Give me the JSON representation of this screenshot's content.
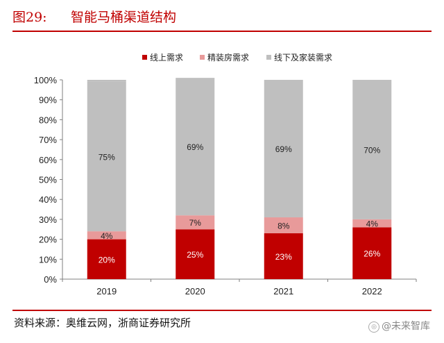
{
  "header": {
    "figure_label": "图29:",
    "title": "智能马桶渠道结构"
  },
  "source": "资料来源：奥维云网，浙商证券研究所",
  "watermark": "@未来智库",
  "colors": {
    "online": "#c00000",
    "fine_decoration": "#e89a9a",
    "offline_home": "#bfbfbf",
    "accent": "#c00000"
  },
  "chart_data": {
    "type": "bar",
    "stacked": true,
    "categories": [
      "2019",
      "2020",
      "2021",
      "2022"
    ],
    "series": [
      {
        "name": "线上需求",
        "values": [
          20,
          25,
          23,
          26
        ],
        "labels": [
          "20%",
          "25%",
          "23%",
          "26%"
        ]
      },
      {
        "name": "精装房需求",
        "values": [
          4,
          7,
          8,
          4
        ],
        "labels": [
          "4%",
          "7%",
          "8%",
          "4%"
        ]
      },
      {
        "name": "线下及家装需求",
        "values": [
          75,
          69,
          69,
          70
        ],
        "labels": [
          "75%",
          "69%",
          "69%",
          "70%"
        ]
      }
    ],
    "ylim": [
      0,
      100
    ],
    "yticks": [
      "0%",
      "10%",
      "20%",
      "30%",
      "40%",
      "50%",
      "60%",
      "70%",
      "80%",
      "90%",
      "100%"
    ],
    "legend_position": "top",
    "grid": false
  }
}
